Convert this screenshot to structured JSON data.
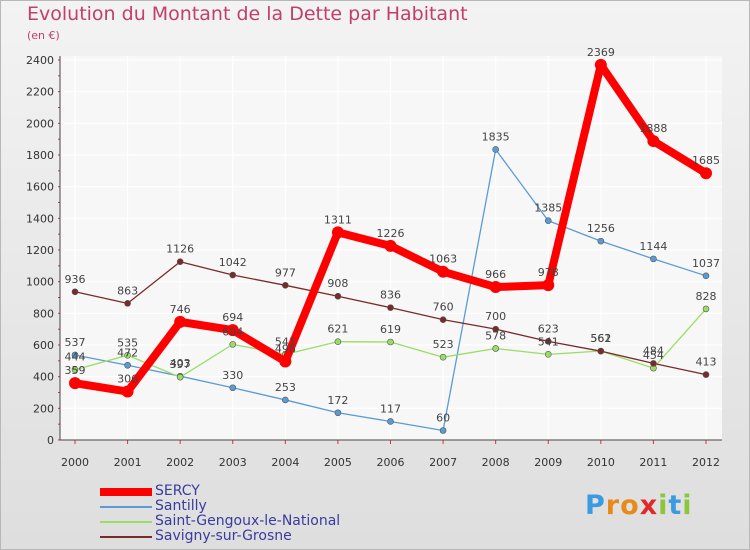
{
  "header": {
    "title": "Evolution du Montant de la Dette par Habitant",
    "subtitle": "(en €)"
  },
  "logo": {
    "letters": [
      "P",
      "r",
      "o",
      "x",
      "i",
      "t",
      "i"
    ],
    "colors": [
      "#3a9be0",
      "#e88a1a",
      "#e88a1a",
      "#e02a2a",
      "#8cc63f",
      "#3a9be0",
      "#8cc63f"
    ]
  },
  "chart_data": {
    "type": "line",
    "title": "Evolution du Montant de la Dette par Habitant",
    "subtitle": "(en €)",
    "x": [
      "2000",
      "2001",
      "2002",
      "2003",
      "2004",
      "2005",
      "2006",
      "2007",
      "2008",
      "2009",
      "2010",
      "2011",
      "2012"
    ],
    "ylim": [
      0,
      2400
    ],
    "yticks": [
      0,
      200,
      400,
      600,
      800,
      1000,
      1200,
      1400,
      1600,
      1800,
      2000,
      2200,
      2400
    ],
    "grid": true,
    "legend_position": "bottom-left",
    "series": [
      {
        "name": "SERCY",
        "color": "#ff0000",
        "values": [
          359,
          306,
          746,
          694,
          496,
          1311,
          1226,
          1063,
          966,
          978,
          2369,
          1888,
          1685
        ]
      },
      {
        "name": "Santilly",
        "color": "#5b9bd5",
        "values": [
          537,
          472,
          403,
          330,
          253,
          172,
          117,
          60,
          1835,
          1385,
          1256,
          1144,
          1037
        ]
      },
      {
        "name": "Saint-Gengoux-le-National",
        "color": "#99dd66",
        "values": [
          444,
          535,
          397,
          604,
          541,
          621,
          619,
          523,
          578,
          541,
          562,
          454,
          828
        ]
      },
      {
        "name": "Savigny-sur-Grosne",
        "color": "#7a2a2a",
        "values": [
          936,
          863,
          1126,
          1042,
          977,
          908,
          836,
          760,
          700,
          623,
          561,
          484,
          413
        ]
      }
    ]
  }
}
